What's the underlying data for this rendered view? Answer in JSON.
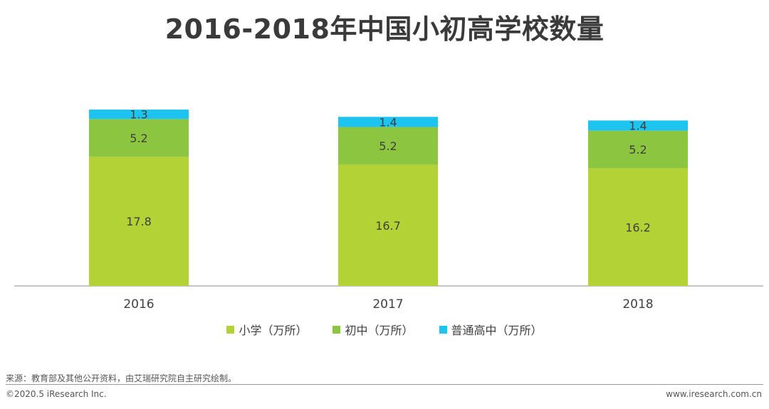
{
  "colors": {
    "primary": "#B2D235",
    "junior": "#8CC540",
    "senior": "#1CC4EF",
    "text": "#404040"
  },
  "chart_data": {
    "type": "bar",
    "stacked": true,
    "title": "2016-2018年中国小初高学校数量",
    "categories": [
      "2016",
      "2017",
      "2018"
    ],
    "series": [
      {
        "name": "小学（万所）",
        "values": [
          17.8,
          16.7,
          16.2
        ]
      },
      {
        "name": "初中（万所）",
        "values": [
          5.2,
          5.2,
          5.2
        ]
      },
      {
        "name": "普通高中（万所）",
        "values": [
          1.3,
          1.4,
          1.4
        ]
      }
    ],
    "ylim": [
      0,
      24.7
    ],
    "grid": false,
    "legend_position": "bottom"
  },
  "footer": {
    "source": "来源：教育部及其他公开资料，由艾瑞研究院自主研究绘制。",
    "copyright": "©2020.5 iResearch Inc.",
    "website": "www.iresearch.com.cn"
  }
}
